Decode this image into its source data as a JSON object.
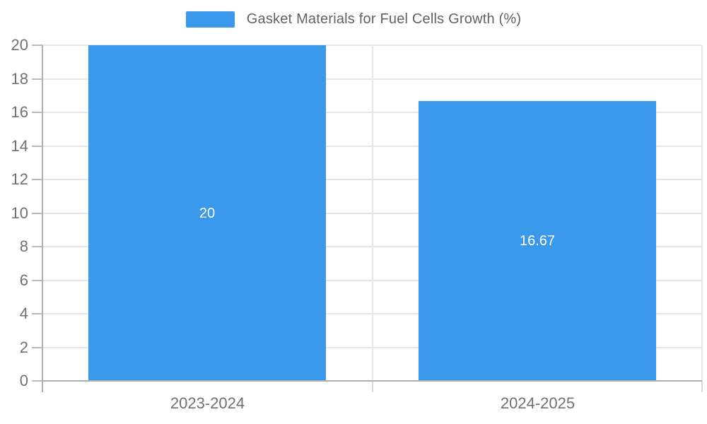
{
  "legend": {
    "label": "Gasket Materials for Fuel Cells Growth (%)"
  },
  "chart_data": {
    "type": "bar",
    "title": "Gasket Materials for Fuel Cells Growth (%)",
    "categories": [
      "2023-2024",
      "2024-2025"
    ],
    "values": [
      20,
      16.67
    ],
    "data_labels": [
      "20",
      "16.67"
    ],
    "xlabel": "",
    "ylabel": "",
    "ylim": [
      0,
      20
    ],
    "ytick_step": 2,
    "yticks": [
      0,
      2,
      4,
      6,
      8,
      10,
      12,
      14,
      16,
      18,
      20
    ],
    "grid": true,
    "legend_position": "top",
    "colors": {
      "bar": "#3b99ec",
      "data_label": "#ffffff",
      "axis_label": "#707070",
      "legend_label": "#616161",
      "gridline": "#e6e6e6",
      "axis_line": "#aeaeae",
      "tick_line": "#b9b9b9",
      "below_axis_tick": "#d7d7d7",
      "background": "#ffffff"
    }
  }
}
